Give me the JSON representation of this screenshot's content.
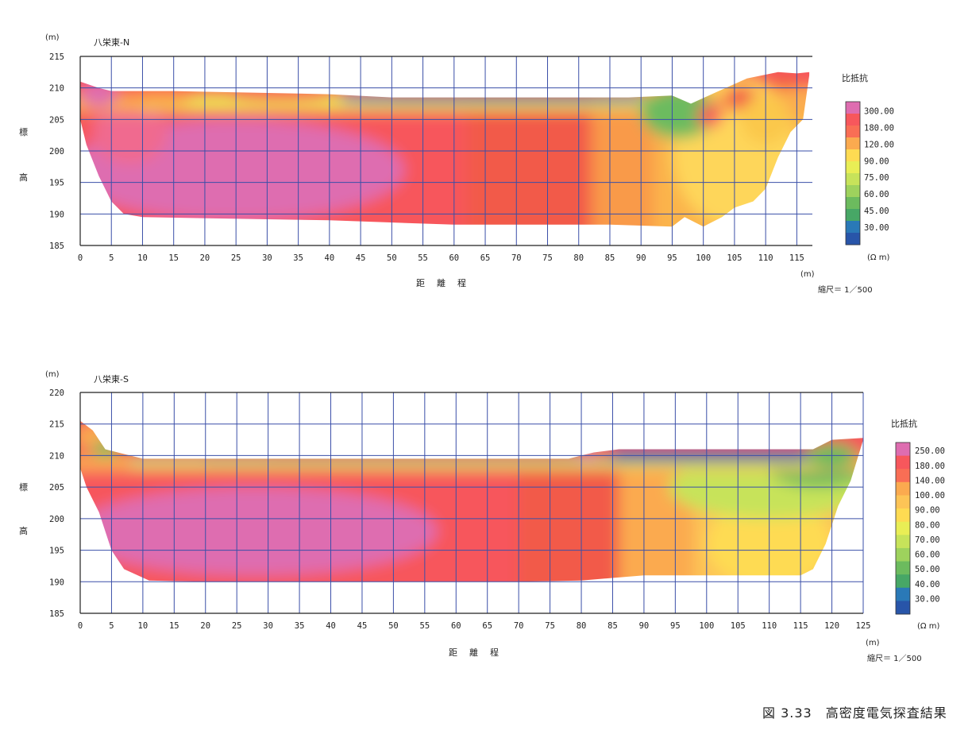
{
  "caption": "図 3.33　高密度電気探査結果",
  "chart_data": [
    {
      "type": "heatmap",
      "title": "八栄東-N",
      "y_unit": "(m)",
      "x_unit": "(m)",
      "ylabel": [
        "標",
        "高"
      ],
      "xlabel": "距　離　程",
      "scale": "縮尺＝ 1／500",
      "legend_title": "比抵抗",
      "legend_unit": "(Ω m)",
      "xlim": [
        0,
        117.5
      ],
      "ylim": [
        185,
        215
      ],
      "x_ticks": [
        0,
        5,
        10,
        15,
        20,
        25,
        30,
        35,
        40,
        45,
        50,
        55,
        60,
        65,
        70,
        75,
        80,
        85,
        90,
        95,
        100,
        105,
        110,
        115
      ],
      "y_ticks": [
        185,
        190,
        195,
        200,
        205,
        210,
        215
      ],
      "legend_values": [
        "300.00",
        "180.00",
        "120.00",
        "90.00",
        "75.00",
        "60.00",
        "45.00",
        "30.00"
      ],
      "legend_colors": [
        "#de6db0",
        "#f7575c",
        "#f96e55",
        "#fbaa4f",
        "#fedb52",
        "#e9ee55",
        "#c7e35a",
        "#9ed25d",
        "#6cbb5e",
        "#47a766",
        "#2a79b7",
        "#2855a9"
      ],
      "surface": [
        [
          0,
          211
        ],
        [
          3,
          210
        ],
        [
          5,
          209.5
        ],
        [
          15,
          209.5
        ],
        [
          40,
          209
        ],
        [
          50,
          208.5
        ],
        [
          70,
          208.5
        ],
        [
          88,
          208.5
        ],
        [
          95,
          208.8
        ],
        [
          98,
          207.5
        ],
        [
          102,
          209.3
        ],
        [
          107,
          211.5
        ],
        [
          112,
          212.5
        ],
        [
          115,
          212.3
        ],
        [
          117,
          212.5
        ]
      ],
      "base": [
        [
          117,
          212
        ],
        [
          116,
          205
        ],
        [
          114,
          203
        ],
        [
          112,
          199
        ],
        [
          110,
          194
        ],
        [
          108,
          192
        ],
        [
          105,
          191
        ],
        [
          103,
          189.5
        ],
        [
          100,
          188
        ],
        [
          97,
          189.5
        ],
        [
          95,
          188
        ],
        [
          85,
          188.3
        ],
        [
          60,
          188.3
        ],
        [
          40,
          189
        ],
        [
          10,
          189.5
        ],
        [
          7,
          190
        ],
        [
          5,
          192
        ],
        [
          3,
          196
        ],
        [
          1,
          201
        ],
        [
          0,
          205
        ]
      ]
    },
    {
      "type": "heatmap",
      "title": "八栄東-S",
      "y_unit": "(m)",
      "x_unit": "(m)",
      "ylabel": [
        "標",
        "高"
      ],
      "xlabel": "距　離　程",
      "scale": "縮尺＝ 1／500",
      "legend_title": "比抵抗",
      "legend_unit": "(Ω m)",
      "xlim": [
        0,
        125
      ],
      "ylim": [
        185,
        220
      ],
      "x_ticks": [
        0,
        5,
        10,
        15,
        20,
        25,
        30,
        35,
        40,
        45,
        50,
        55,
        60,
        65,
        70,
        75,
        80,
        85,
        90,
        95,
        100,
        105,
        110,
        115,
        120,
        125
      ],
      "y_ticks": [
        185,
        190,
        195,
        200,
        205,
        210,
        215,
        220
      ],
      "legend_values": [
        "250.00",
        "180.00",
        "140.00",
        "100.00",
        "90.00",
        "80.00",
        "70.00",
        "60.00",
        "50.00",
        "40.00",
        "30.00"
      ],
      "legend_colors": [
        "#de6db0",
        "#f7575c",
        "#f96e55",
        "#fbaa4f",
        "#fdc456",
        "#fedb52",
        "#e9ee55",
        "#c7e35a",
        "#9ed25d",
        "#6cbb5e",
        "#47a766",
        "#2a79b7",
        "#2855a9"
      ],
      "surface": [
        [
          0,
          215.5
        ],
        [
          2,
          214
        ],
        [
          4,
          211
        ],
        [
          6,
          210.5
        ],
        [
          10,
          209.5
        ],
        [
          40,
          209.5
        ],
        [
          78,
          209.5
        ],
        [
          80,
          210
        ],
        [
          82,
          210.5
        ],
        [
          86,
          211
        ],
        [
          100,
          211
        ],
        [
          117,
          211
        ],
        [
          120,
          212.5
        ],
        [
          125,
          212.8
        ]
      ],
      "base": [
        [
          125,
          212.5
        ],
        [
          123,
          206
        ],
        [
          121,
          202
        ],
        [
          119,
          196
        ],
        [
          117,
          192
        ],
        [
          115,
          191
        ],
        [
          90,
          191
        ],
        [
          80,
          190.2
        ],
        [
          70,
          190
        ],
        [
          20,
          190
        ],
        [
          11,
          190.2
        ],
        [
          7,
          192
        ],
        [
          5,
          195
        ],
        [
          3,
          201
        ],
        [
          1,
          205
        ],
        [
          0,
          208
        ]
      ]
    }
  ]
}
